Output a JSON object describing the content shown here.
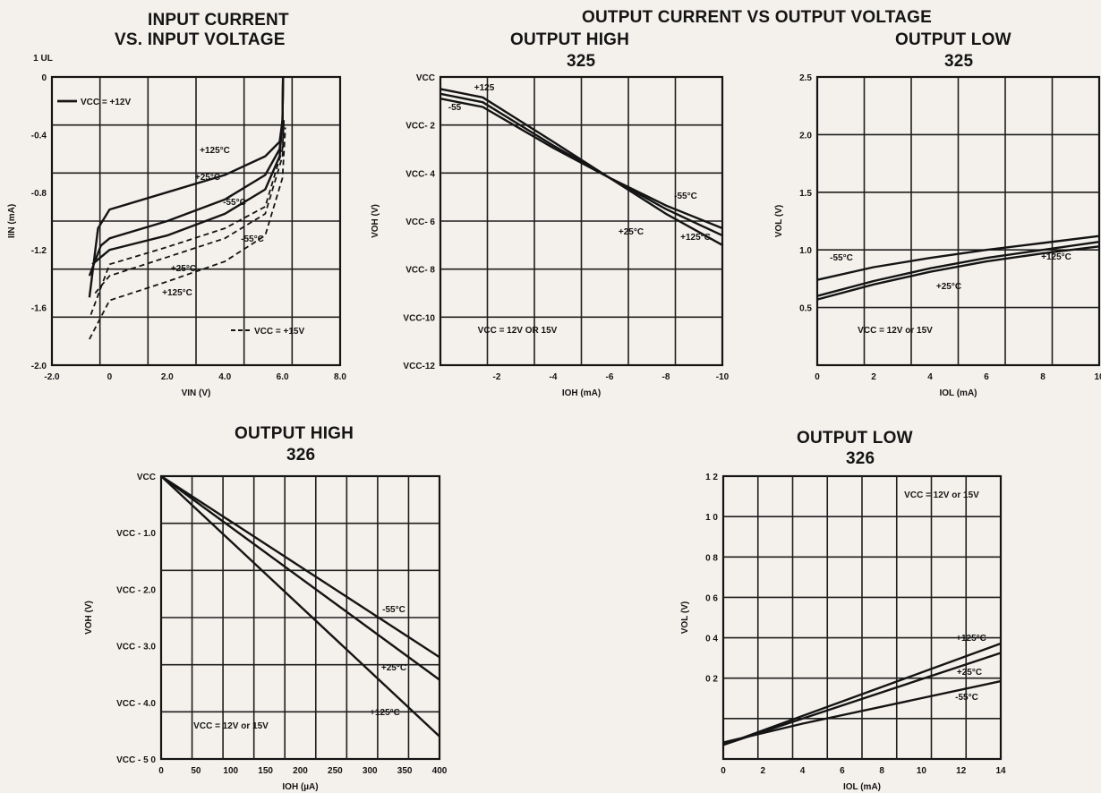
{
  "page": {
    "main_title": "OUTPUT CURRENT VS OUTPUT VOLTAGE",
    "titles": {
      "c1_line1": "INPUT CURRENT",
      "c1_line2": "VS. INPUT VOLTAGE",
      "c2_line1": "OUTPUT HIGH",
      "c2_line2": "325",
      "c3_line1": "OUTPUT LOW",
      "c3_line2": "325",
      "c4_line1": "OUTPUT HIGH",
      "c4_line2": "326",
      "c5_line1": "OUTPUT LOW",
      "c5_line2": "326"
    }
  },
  "chart_data": [
    {
      "id": "input_current",
      "type": "line",
      "title": "INPUT CURRENT VS. INPUT VOLTAGE",
      "xlabel": "VIN (V)",
      "ylabel": "IIN (mA)",
      "unit_label": "1 UL",
      "xlim": [
        -2.0,
        8.0
      ],
      "ylim": [
        -2.0,
        0
      ],
      "x_ticks": [
        "-2.0",
        "0",
        "2.0",
        "4.0",
        "6.0",
        "8.0"
      ],
      "y_ticks": [
        "0",
        "-0.4",
        "-0.8",
        "-1.2",
        "-1.6",
        "-2.0"
      ],
      "grid": true,
      "legend": [
        {
          "label": "VCC = +12V",
          "style": "solid"
        },
        {
          "label": "VCC = +15V",
          "style": "dashed"
        }
      ],
      "series": [
        {
          "name": "+125°C",
          "style": "solid",
          "points": [
            [
              -0.7,
              -1.53
            ],
            [
              -0.4,
              -1.05
            ],
            [
              0,
              -0.92
            ],
            [
              2,
              -0.8
            ],
            [
              4,
              -0.68
            ],
            [
              5.4,
              -0.55
            ],
            [
              5.9,
              -0.45
            ],
            [
              6.0,
              -0.3
            ],
            [
              6.02,
              0
            ]
          ]
        },
        {
          "name": "+25°C",
          "style": "solid",
          "points": [
            [
              -0.7,
              -1.38
            ],
            [
              -0.3,
              -1.17
            ],
            [
              0,
              -1.12
            ],
            [
              2,
              -1.0
            ],
            [
              4,
              -0.85
            ],
            [
              5.4,
              -0.68
            ],
            [
              5.9,
              -0.5
            ],
            [
              6.0,
              -0.3
            ],
            [
              6.02,
              0
            ]
          ]
        },
        {
          "name": "-55°C",
          "style": "solid",
          "points": [
            [
              -0.6,
              -1.3
            ],
            [
              0,
              -1.2
            ],
            [
              2,
              -1.1
            ],
            [
              4,
              -0.95
            ],
            [
              5.4,
              -0.78
            ],
            [
              5.9,
              -0.55
            ],
            [
              6.0,
              -0.3
            ],
            [
              6.02,
              0
            ]
          ]
        },
        {
          "name": "+25°C",
          "style": "dashed",
          "points": [
            [
              -0.65,
              -1.65
            ],
            [
              0,
              -1.3
            ],
            [
              2,
              -1.18
            ],
            [
              4,
              -1.05
            ],
            [
              5.4,
              -0.9
            ],
            [
              6.0,
              -0.5
            ],
            [
              6.05,
              -0.3
            ]
          ]
        },
        {
          "name": "-55°C",
          "style": "dashed",
          "points": [
            [
              -0.5,
              -1.5
            ],
            [
              0,
              -1.38
            ],
            [
              2,
              -1.25
            ],
            [
              4,
              -1.12
            ],
            [
              5.4,
              -0.95
            ],
            [
              6.0,
              -0.55
            ],
            [
              6.05,
              -0.3
            ]
          ]
        },
        {
          "name": "+125°C",
          "style": "dashed",
          "points": [
            [
              -0.7,
              -1.82
            ],
            [
              0,
              -1.55
            ],
            [
              2,
              -1.42
            ],
            [
              4,
              -1.28
            ],
            [
              5.4,
              -1.1
            ],
            [
              6.0,
              -0.7
            ],
            [
              6.1,
              -0.35
            ]
          ]
        }
      ],
      "annotations": [
        "+125°C",
        "+25°C",
        "-55°C",
        "-55°C",
        "+25°C",
        "+125°C"
      ]
    },
    {
      "id": "output_high_325",
      "type": "line",
      "title": "OUTPUT HIGH 325",
      "xlabel": "IOH (mA)",
      "ylabel": "VOH (V)",
      "xlim": [
        0,
        -10
      ],
      "ylim": [
        -12,
        0
      ],
      "x_ticks": [
        "-2",
        "-4",
        "-6",
        "-8",
        "-10"
      ],
      "y_ticks": [
        "VCC",
        "VCC- 2",
        "VCC- 4",
        "VCC- 6",
        "VCC- 8",
        "VCC-10",
        "VCC-12"
      ],
      "grid": true,
      "note": "VCC = 12V OR 15V",
      "series": [
        {
          "name": "+125",
          "points": [
            [
              0,
              -0.5
            ],
            [
              -1.5,
              -0.85
            ],
            [
              -4,
              -2.7
            ],
            [
              -6,
              -4.2
            ],
            [
              -8,
              -5.7
            ],
            [
              -10,
              -7.0
            ]
          ]
        },
        {
          "name": "+25°C",
          "points": [
            [
              0,
              -0.7
            ],
            [
              -1.5,
              -1.05
            ],
            [
              -4,
              -2.85
            ],
            [
              -6,
              -4.2
            ],
            [
              -8,
              -5.5
            ],
            [
              -10,
              -6.6
            ]
          ]
        },
        {
          "name": "-55",
          "points": [
            [
              0,
              -0.9
            ],
            [
              -1.5,
              -1.25
            ],
            [
              -4,
              -2.95
            ],
            [
              -6,
              -4.2
            ],
            [
              -8,
              -5.35
            ],
            [
              -10,
              -6.3
            ]
          ]
        }
      ],
      "annotations": [
        "+125",
        "-55",
        "-55°C",
        "+25°C",
        "+125°C"
      ]
    },
    {
      "id": "output_low_325",
      "type": "line",
      "title": "OUTPUT LOW 325",
      "xlabel": "IOL (mA)",
      "ylabel": "VOL (V)",
      "xlim": [
        0,
        10
      ],
      "ylim": [
        0,
        2.5
      ],
      "x_ticks": [
        "0",
        "2",
        "4",
        "6",
        "8",
        "10"
      ],
      "y_ticks": [
        "2.5",
        "2.0",
        "1.5",
        "1.0",
        "0.5"
      ],
      "grid": true,
      "note": "VCC = 12V or 15V",
      "series": [
        {
          "name": "-55°C",
          "points": [
            [
              0,
              0.74
            ],
            [
              2,
              0.85
            ],
            [
              4,
              0.93
            ],
            [
              6,
              1.0
            ],
            [
              8,
              1.06
            ],
            [
              10,
              1.12
            ]
          ]
        },
        {
          "name": "+25°C",
          "points": [
            [
              0,
              0.6
            ],
            [
              2,
              0.73
            ],
            [
              4,
              0.84
            ],
            [
              6,
              0.93
            ],
            [
              8,
              1.0
            ],
            [
              10,
              1.07
            ]
          ]
        },
        {
          "name": "+125°C",
          "points": [
            [
              0,
              0.57
            ],
            [
              2,
              0.7
            ],
            [
              4,
              0.81
            ],
            [
              6,
              0.9
            ],
            [
              8,
              0.97
            ],
            [
              10,
              1.03
            ]
          ]
        }
      ],
      "annotations": [
        "-55°C",
        "+25°C",
        "+125°C"
      ]
    },
    {
      "id": "output_high_326",
      "type": "line",
      "title": "OUTPUT HIGH 326",
      "xlabel": "IOH (µA)",
      "ylabel": "VOH (V)",
      "xlim": [
        0,
        400
      ],
      "ylim": [
        -5.0,
        0
      ],
      "x_ticks": [
        "0",
        "50",
        "100",
        "150",
        "200",
        "250",
        "300",
        "350",
        "400"
      ],
      "y_ticks": [
        "VCC",
        "VCC - 1.0",
        "VCC - 2.0",
        "VCC - 3.0",
        "VCC - 4.0",
        "VCC - 5 0"
      ],
      "grid": true,
      "note": "VCC = 12V or 15V",
      "series": [
        {
          "name": "-55°C",
          "points": [
            [
              0,
              0
            ],
            [
              400,
              -3.2
            ]
          ]
        },
        {
          "name": "+25°C",
          "points": [
            [
              0,
              0
            ],
            [
              400,
              -3.6
            ]
          ]
        },
        {
          "name": "+125°C",
          "points": [
            [
              0,
              0
            ],
            [
              400,
              -4.6
            ]
          ]
        }
      ],
      "annotations": [
        "-55°C",
        "+25°C",
        "+125°C"
      ]
    },
    {
      "id": "output_low_326",
      "type": "line",
      "title": "OUTPUT LOW 326",
      "xlabel": "IOL (mA)",
      "ylabel": "VOL (V)",
      "xlim": [
        0,
        14
      ],
      "ylim": [
        0,
        1.2
      ],
      "x_ticks": [
        "0",
        "2",
        "4",
        "6",
        "8",
        "10",
        "12",
        "14"
      ],
      "y_ticks": [
        "1 2",
        "1 0",
        "0 8",
        "0 6",
        "0 4",
        "0 2"
      ],
      "grid": true,
      "note": "VCC = 12V or 15V",
      "series": [
        {
          "name": "+125°C",
          "points": [
            [
              0,
              0.06
            ],
            [
              14,
              0.49
            ]
          ]
        },
        {
          "name": "+25°C",
          "points": [
            [
              0,
              0.06
            ],
            [
              14,
              0.45
            ]
          ]
        },
        {
          "name": "-55°C",
          "points": [
            [
              0,
              0.07
            ],
            [
              4,
              0.15
            ],
            [
              14,
              0.33
            ]
          ]
        }
      ],
      "annotations": [
        "+125°C",
        "+25°C",
        "-55°C"
      ]
    }
  ]
}
